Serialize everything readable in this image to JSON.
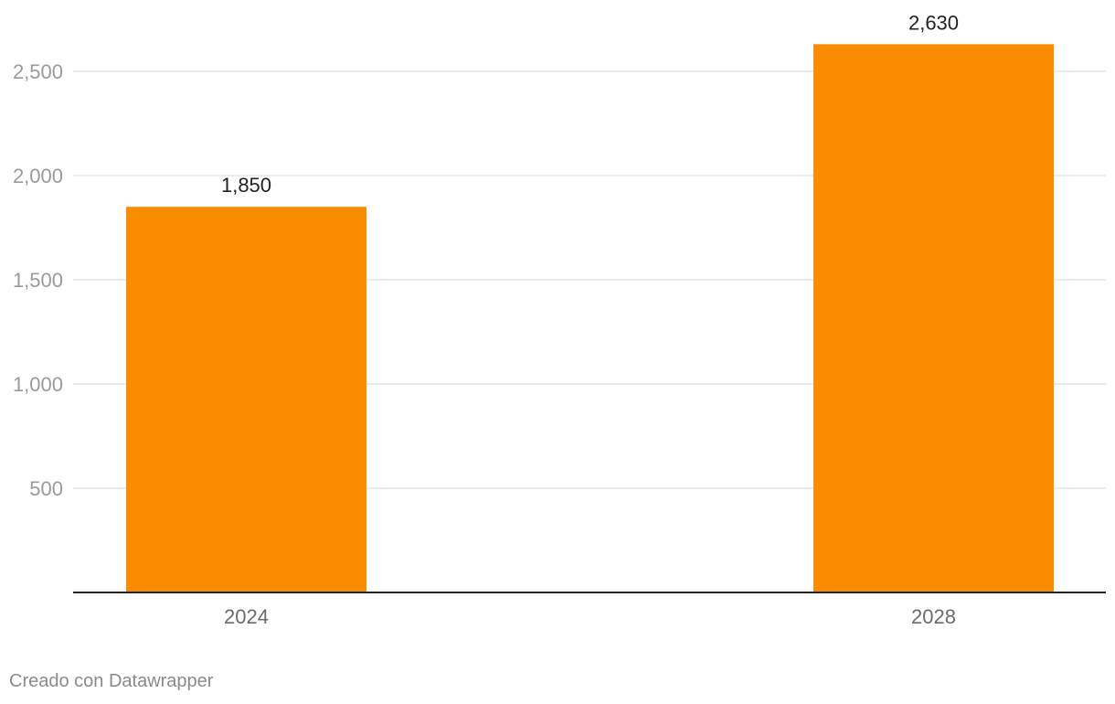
{
  "chart_data": {
    "type": "bar",
    "categories": [
      "2024",
      "2028"
    ],
    "values": [
      1850,
      2630
    ],
    "value_labels": [
      "1,850",
      "2,630"
    ],
    "title": "",
    "xlabel": "",
    "ylabel": "",
    "ylim": [
      0,
      2650
    ],
    "yticks": [
      500,
      1000,
      1500,
      2000,
      2500
    ],
    "ytick_labels": [
      "500",
      "1,000",
      "1,500",
      "2,000",
      "2,500"
    ],
    "grid": true,
    "legend": "none",
    "bar_color": "#f98c00",
    "gridline_color": "#e3e3e3",
    "axis_color": "#222222",
    "tick_label_color": "#9a9a9a",
    "category_label_color": "#6b6b6b",
    "value_label_color": "#222222"
  },
  "footer": {
    "credit": "Creado con Datawrapper"
  }
}
